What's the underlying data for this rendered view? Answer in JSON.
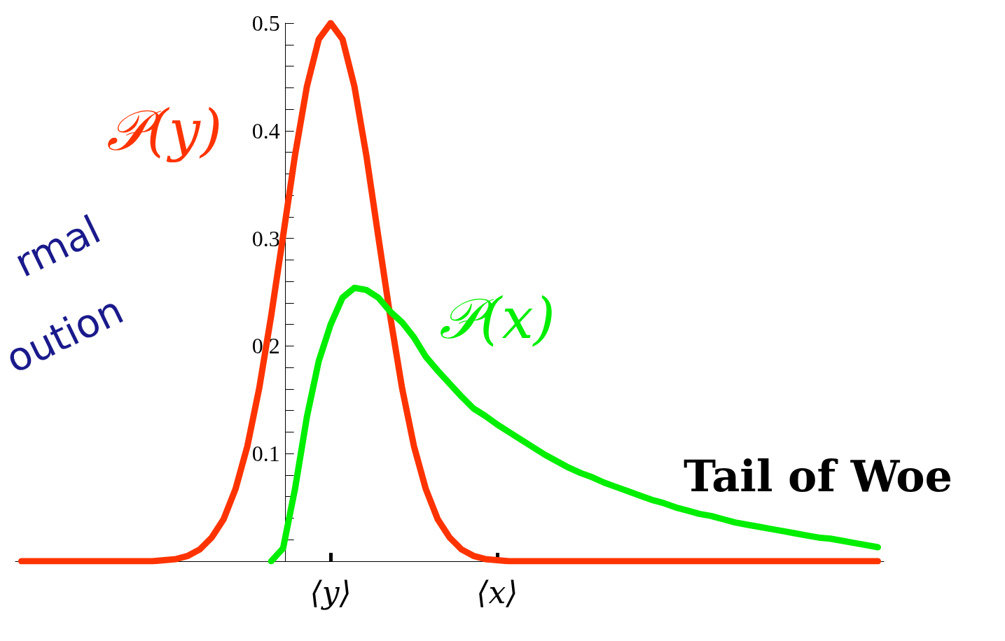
{
  "chart_data": {
    "type": "line",
    "categories": [
      null,
      null,
      null,
      null,
      null,
      null,
      null,
      null,
      null,
      null,
      null,
      null,
      null,
      null,
      null,
      null,
      null,
      null,
      null,
      null,
      null,
      null,
      null,
      null,
      null,
      null,
      "⟨y⟩",
      null,
      null,
      null,
      null,
      null,
      null,
      null,
      null,
      null,
      null,
      null,
      null,
      null,
      "⟨x⟩",
      null,
      null,
      null,
      null,
      null,
      null,
      null,
      null,
      null,
      null,
      null,
      null,
      null,
      null,
      null,
      null,
      null,
      null,
      null,
      null,
      null,
      null,
      null,
      null,
      null,
      null,
      null,
      null,
      null,
      null,
      null,
      null
    ],
    "ylim": [
      0,
      0.5
    ],
    "yticks": [
      {
        "value": 0,
        "label": null
      },
      0.1,
      0.2,
      0.3,
      0.4,
      0.5
    ],
    "grid": false,
    "legend": false,
    "marker": "none",
    "line_style": "solid",
    "series": [
      {
        "name": "𝒫(y)",
        "color": "#ff3300",
        "values": [
          0,
          0,
          0,
          0,
          0,
          0,
          0,
          0,
          0,
          0,
          0,
          0,
          0.001,
          0.002,
          0.005,
          0.011,
          0.022,
          0.039,
          0.067,
          0.107,
          0.161,
          0.228,
          0.302,
          0.377,
          0.441,
          0.485,
          0.5,
          0.485,
          0.441,
          0.377,
          0.302,
          0.228,
          0.161,
          0.107,
          0.067,
          0.039,
          0.022,
          0.011,
          0.005,
          0.002,
          0.001,
          0,
          0,
          0,
          0,
          0,
          0,
          0,
          0,
          0,
          0,
          0,
          0,
          0,
          0,
          0,
          0,
          0,
          0,
          0,
          0,
          0,
          0,
          0,
          0,
          0,
          0,
          0,
          0,
          0,
          0,
          0,
          0
        ]
      },
      {
        "name": "𝒫(x)",
        "color": "#00ee00",
        "values": [
          null,
          null,
          null,
          null,
          null,
          null,
          null,
          null,
          null,
          null,
          null,
          null,
          null,
          null,
          null,
          null,
          null,
          null,
          null,
          null,
          null,
          0,
          0.012,
          0.067,
          0.134,
          0.186,
          0.22,
          0.245,
          0.254,
          0.252,
          0.245,
          0.232,
          0.222,
          0.208,
          0.19,
          0.177,
          0.165,
          0.153,
          0.142,
          0.135,
          0.127,
          0.12,
          0.113,
          0.106,
          0.099,
          0.093,
          0.087,
          0.082,
          0.078,
          0.073,
          0.069,
          0.065,
          0.061,
          0.057,
          0.054,
          0.05,
          0.047,
          0.044,
          0.042,
          0.039,
          0.036,
          0.034,
          0.032,
          0.03,
          0.028,
          0.026,
          0.024,
          0.022,
          0.021,
          0.019,
          0.017,
          0.015,
          0.013
        ]
      }
    ],
    "annotations": [
      "rmal",
      "oution",
      "Tail of Woe"
    ]
  }
}
